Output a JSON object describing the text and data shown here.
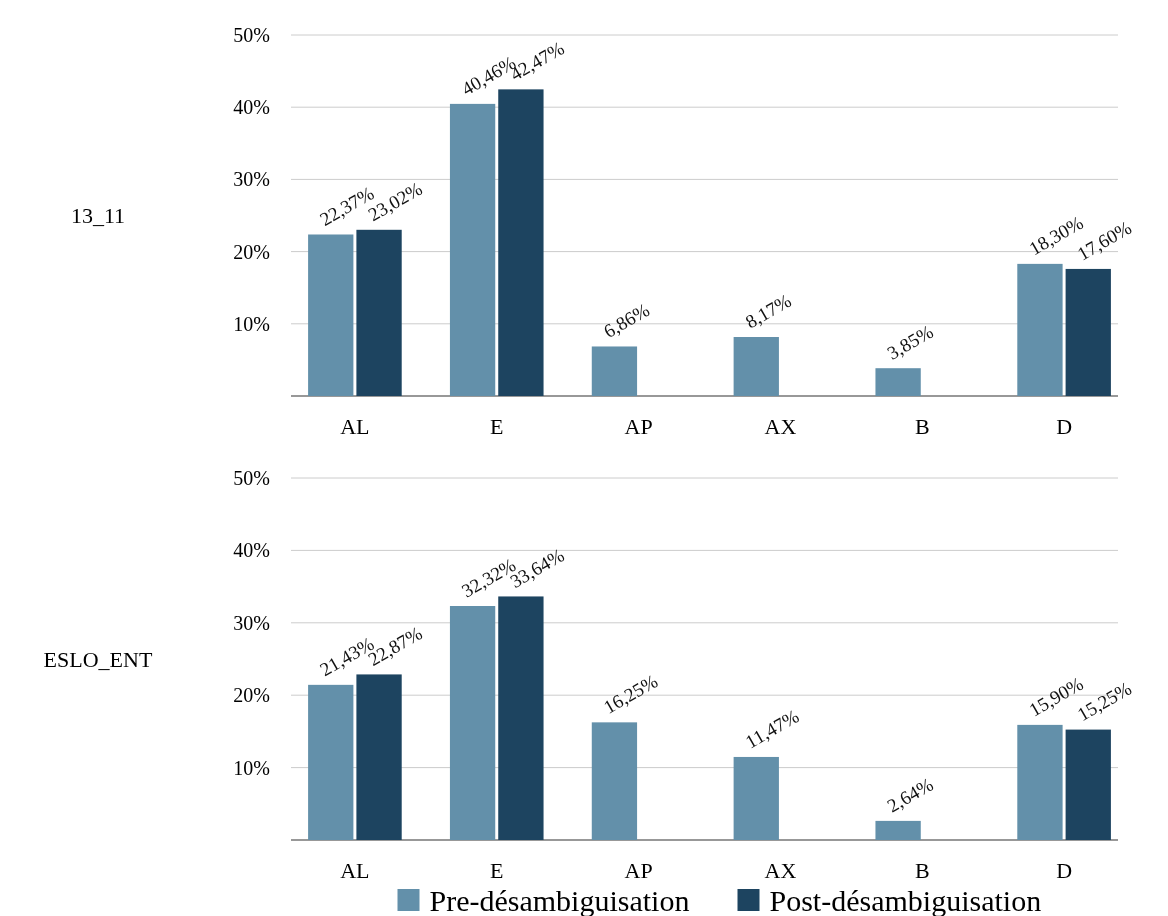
{
  "chart_data": [
    {
      "type": "bar",
      "ylabel": "13_11",
      "categories": [
        "AL",
        "E",
        "AP",
        "AX",
        "B",
        "D"
      ],
      "ylim": [
        0,
        50
      ],
      "yticks": [
        {
          "value": 0,
          "label": null
        },
        {
          "value": 10,
          "label": "10%"
        },
        {
          "value": 20,
          "label": "20%"
        },
        {
          "value": 30,
          "label": "30%"
        },
        {
          "value": 40,
          "label": "40%"
        },
        {
          "value": 50,
          "label": "50%"
        }
      ],
      "grid": "y",
      "legend": false,
      "series": [
        {
          "color": "#6390aa",
          "values": [
            22.37,
            40.46,
            6.86,
            8.17,
            3.85,
            18.3
          ],
          "value_labels": [
            "22,37%",
            "40,46%",
            "6,86%",
            "8,17%",
            "3,85%",
            "18,30%"
          ]
        },
        {
          "color": "#1d4460",
          "values": [
            23.02,
            42.47,
            null,
            null,
            null,
            17.6
          ],
          "value_labels": [
            "23,02%",
            "42,47%",
            null,
            null,
            null,
            "17,60%"
          ]
        }
      ]
    },
    {
      "type": "bar",
      "ylabel": "ESLO_ENT",
      "categories": [
        "AL",
        "E",
        "AP",
        "AX",
        "B",
        "D"
      ],
      "ylim": [
        0,
        50
      ],
      "yticks": [
        {
          "value": 0,
          "label": null
        },
        {
          "value": 10,
          "label": "10%"
        },
        {
          "value": 20,
          "label": "20%"
        },
        {
          "value": 30,
          "label": "30%"
        },
        {
          "value": 40,
          "label": "40%"
        },
        {
          "value": 50,
          "label": "50%"
        }
      ],
      "grid": "y",
      "legend": "bottom",
      "series": [
        {
          "name": "Pre-désambiguisation",
          "color": "#6390aa",
          "values": [
            21.43,
            32.32,
            16.25,
            11.47,
            2.64,
            15.9
          ],
          "value_labels": [
            "21,43%",
            "32,32%",
            "16,25%",
            "11,47%",
            "2,64%",
            "15,90%"
          ]
        },
        {
          "name": "Post-désambiguisation",
          "color": "#1d4460",
          "values": [
            22.87,
            33.64,
            null,
            null,
            null,
            15.25
          ],
          "value_labels": [
            "22,87%",
            "33,64%",
            null,
            null,
            null,
            "15,25%"
          ]
        }
      ]
    }
  ]
}
